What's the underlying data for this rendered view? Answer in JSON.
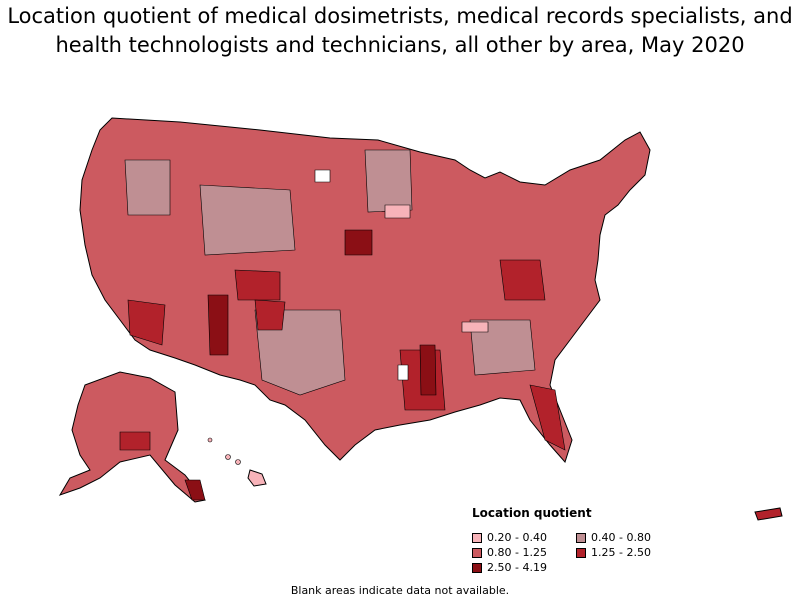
{
  "title": "Location quotient of medical dosimetrists, medical records specialists, and health technologists and technicians, all other by area, May 2020",
  "legend": {
    "title": "Location quotient",
    "items": [
      {
        "label": "0.20 - 0.40",
        "color": "#f7b3b9"
      },
      {
        "label": "0.40 - 0.80",
        "color": "#bf8f93"
      },
      {
        "label": "0.80 - 1.25",
        "color": "#cc5a60"
      },
      {
        "label": "1.25 - 2.50",
        "color": "#b2222b"
      },
      {
        "label": "2.50 - 4.19",
        "color": "#8b0f15"
      }
    ]
  },
  "footnote": "Blank areas indicate data not available.",
  "colors": {
    "border": "#000000",
    "no_data": "#ffffff"
  }
}
